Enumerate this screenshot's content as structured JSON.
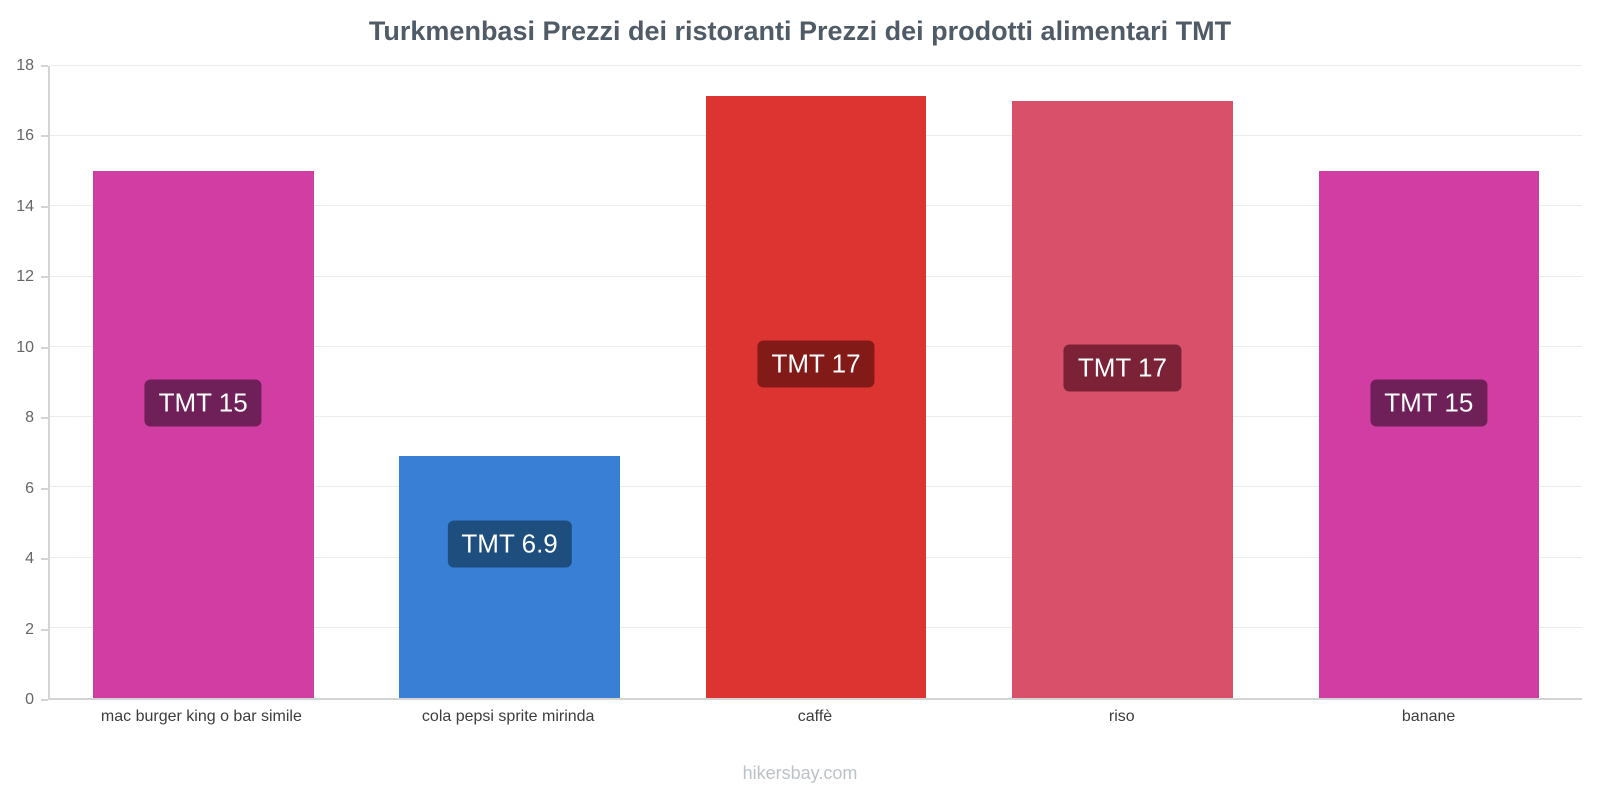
{
  "chart_data": {
    "type": "bar",
    "title": "Turkmenbasi Prezzi dei ristoranti Prezzi dei prodotti alimentari TMT",
    "currency": "TMT",
    "categories": [
      "mac burger king o bar simile",
      "cola pepsi sprite mirinda",
      "caffè",
      "riso",
      "banane"
    ],
    "values": [
      15,
      6.9,
      17.15,
      17,
      15
    ],
    "value_labels": [
      "TMT 15",
      "TMT 6.9",
      "TMT 17",
      "TMT 17",
      "TMT 15"
    ],
    "bar_colors": [
      "#d23da4",
      "#3a7fd6",
      "#dd3431",
      "#d8506a",
      "#d23da4"
    ],
    "label_bg_colors": [
      "#6f2058",
      "#1d4e7e",
      "#821b18",
      "#7c2237",
      "#6f2058"
    ],
    "xlabel": "",
    "ylabel": "",
    "ylim": [
      0,
      18
    ],
    "yticks": [
      0,
      2,
      4,
      6,
      8,
      10,
      12,
      14,
      16,
      18
    ],
    "grid": true,
    "legend": "none",
    "label_y": [
      8.4,
      4.4,
      9.5,
      9.4,
      8.4
    ]
  },
  "footer": {
    "text": "hikersbay.com"
  }
}
